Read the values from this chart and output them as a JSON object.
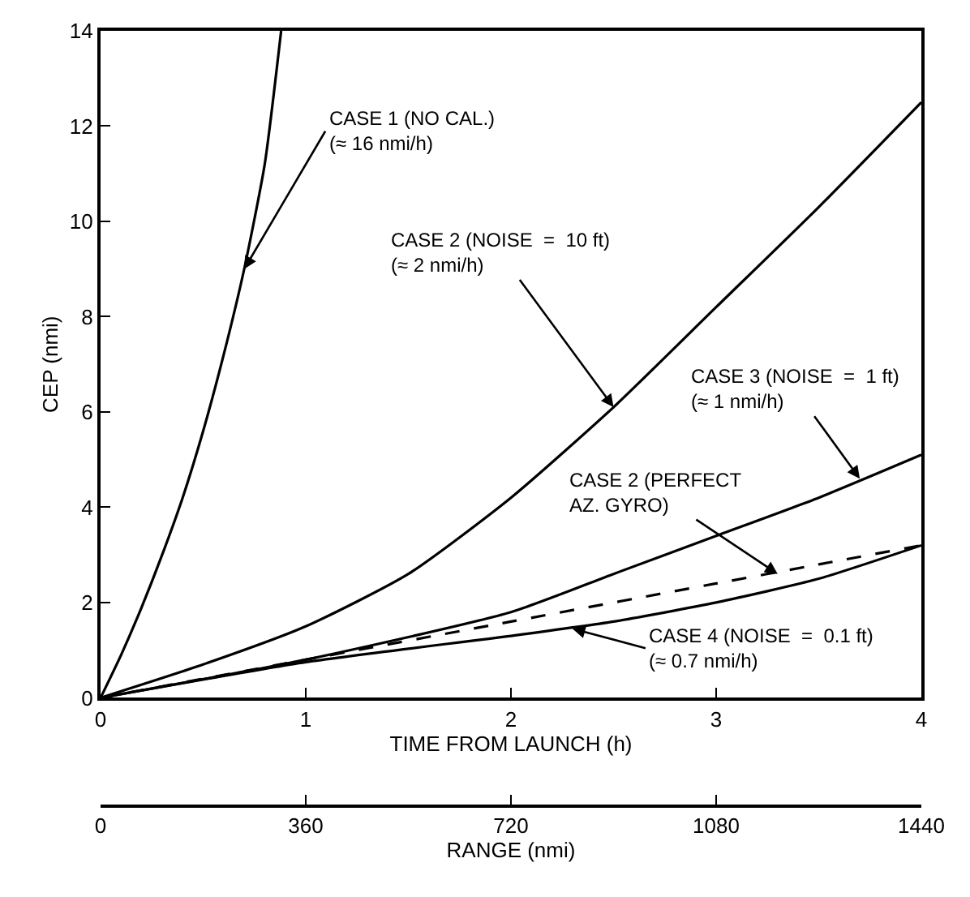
{
  "chart_data": {
    "type": "line",
    "series": [
      {
        "color": "#000000",
        "line_style": "solid",
        "x": [
          0,
          0.1,
          0.2,
          0.3,
          0.4,
          0.5,
          0.6,
          0.7,
          0.8,
          0.88
        ],
        "values": [
          0,
          0.9,
          1.9,
          3.0,
          4.2,
          5.6,
          7.2,
          9.0,
          11.2,
          14
        ]
      },
      {
        "color": "#000000",
        "line_style": "solid",
        "x": [
          0,
          0.5,
          1,
          1.5,
          2,
          2.5,
          3,
          3.5,
          4
        ],
        "values": [
          0,
          0.7,
          1.5,
          2.6,
          4.2,
          6.1,
          8.2,
          10.3,
          12.5
        ]
      },
      {
        "color": "#000000",
        "line_style": "solid",
        "x": [
          0,
          1,
          2,
          2.5,
          3,
          3.5,
          4
        ],
        "values": [
          0,
          0.8,
          1.8,
          2.6,
          3.4,
          4.2,
          5.1
        ]
      },
      {
        "color": "#000000",
        "line_style": "dashed",
        "x": [
          0,
          1,
          2,
          3,
          3.5,
          4
        ],
        "values": [
          0,
          0.8,
          1.6,
          2.4,
          2.8,
          3.2
        ]
      },
      {
        "color": "#000000",
        "line_style": "solid",
        "x": [
          0,
          1,
          2,
          2.5,
          3,
          3.5,
          4
        ],
        "values": [
          0,
          0.75,
          1.3,
          1.6,
          2.0,
          2.5,
          3.2
        ]
      }
    ],
    "xlabel": "TIME FROM LAUNCH (h)",
    "ylabel": "CEP (nmi)",
    "x2label": "RANGE (nmi)",
    "xlim": [
      0,
      4
    ],
    "xticks": [
      0,
      1,
      2,
      3,
      4
    ],
    "x2lim": [
      0,
      1440
    ],
    "x2ticks": [
      0,
      360,
      720,
      1080,
      1440
    ],
    "ylim": [
      0,
      14
    ],
    "yticks": [
      0,
      2,
      4,
      6,
      8,
      10,
      12,
      14
    ],
    "annotations": [
      {
        "text": "CASE 1 (NO CAL.)\n(≈ 16 nmi/h)",
        "x": 0.7,
        "y": 9.0
      },
      {
        "text": "CASE 2 (NOISE  =  10 ft)\n(≈ 2 nmi/h)",
        "x": 2.5,
        "y": 6.1
      },
      {
        "text": "CASE 3 (NOISE  =  1 ft)\n(≈ 1 nmi/h)",
        "x": 3.7,
        "y": 4.6
      },
      {
        "text": "CASE 2 (PERFECT\nAZ. GYRO)",
        "x": 3.3,
        "y": 2.6
      },
      {
        "text": "CASE 4 (NOISE  =  0.1 ft)\n(≈ 0.7 nmi/h)",
        "x": 2.3,
        "y": 1.45
      }
    ]
  }
}
